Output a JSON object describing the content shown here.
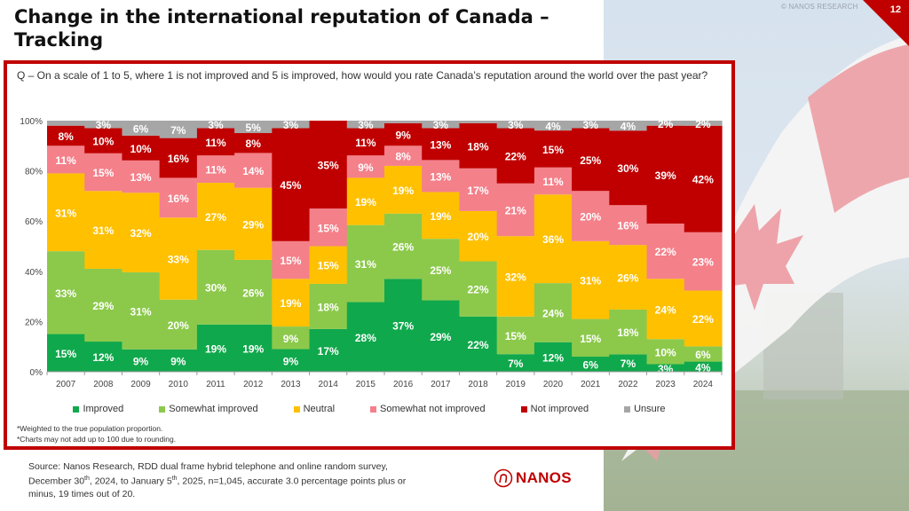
{
  "slide": {
    "title": "Change in the international reputation of Canada – Tracking",
    "copyright": "© NANOS RESEARCH",
    "page_number": "12",
    "accent_color": "#c00000"
  },
  "question": "Q – On a scale of 1 to 5, where 1 is not improved and 5 is improved, how would you rate Canada’s reputation around the world over the past year?",
  "notes": [
    "*Weighted to the true population proportion.",
    "*Charts may not add up to 100 due to rounding."
  ],
  "source": {
    "line1": "Source: Nanos Research, RDD dual frame hybrid  telephone and online random survey,",
    "line2_a": "December 30",
    "line2_sup1": "th",
    "line2_b": ", 2024, to January 5",
    "line2_sup2": "th",
    "line2_c": ", 2025, n=1,045, accurate 3.0 percentage points plus or",
    "line3": "minus, 19 times out of 20."
  },
  "logo": {
    "text": "NANOS",
    "icon": "nanos-n-logo-icon"
  },
  "chart_data": {
    "type": "bar",
    "stacked": true,
    "percent_stacked": true,
    "title": "",
    "xlabel": "",
    "ylabel": "",
    "ylim": [
      0,
      100
    ],
    "y_ticks": [
      "0%",
      "20%",
      "40%",
      "60%",
      "80%",
      "100%"
    ],
    "grid": false,
    "legend_position": "bottom",
    "categories": [
      "2007",
      "2008",
      "2009",
      "2010",
      "2011",
      "2012",
      "2013",
      "2014",
      "2015",
      "2016",
      "2017",
      "2018",
      "2019",
      "2020",
      "2021",
      "2022",
      "2023",
      "2024"
    ],
    "series": [
      {
        "name": "Improved",
        "color": "#10a84c",
        "values": [
          15,
          12,
          9,
          9,
          19,
          19,
          9,
          17,
          28,
          37,
          29,
          22,
          7,
          12,
          6,
          7,
          3,
          4
        ]
      },
      {
        "name": "Somewhat improved",
        "color": "#8cc94b",
        "values": [
          33,
          29,
          31,
          20,
          30,
          26,
          9,
          18,
          31,
          26,
          25,
          22,
          15,
          24,
          15,
          18,
          10,
          6
        ]
      },
      {
        "name": "Neutral",
        "color": "#ffc000",
        "values": [
          31,
          31,
          32,
          33,
          27,
          29,
          19,
          15,
          19,
          19,
          19,
          20,
          32,
          36,
          31,
          26,
          24,
          22
        ]
      },
      {
        "name": "Somewhat not improved",
        "color": "#f4808a",
        "values": [
          11,
          15,
          13,
          16,
          11,
          14,
          15,
          15,
          9,
          8,
          13,
          17,
          21,
          11,
          20,
          16,
          22,
          23
        ]
      },
      {
        "name": "Not improved",
        "color": "#c00000",
        "values": [
          8,
          10,
          10,
          16,
          11,
          8,
          45,
          35,
          11,
          9,
          13,
          18,
          22,
          15,
          25,
          30,
          39,
          42
        ]
      },
      {
        "name": "Unsure",
        "color": "#a6a6a6",
        "values": [
          2,
          3,
          6,
          7,
          3,
          5,
          3,
          0,
          3,
          1,
          3,
          1,
          3,
          4,
          3,
          4,
          2,
          2
        ],
        "labelled": [
          false,
          true,
          true,
          true,
          true,
          true,
          true,
          false,
          true,
          false,
          true,
          false,
          true,
          true,
          true,
          true,
          true,
          true
        ]
      }
    ]
  }
}
